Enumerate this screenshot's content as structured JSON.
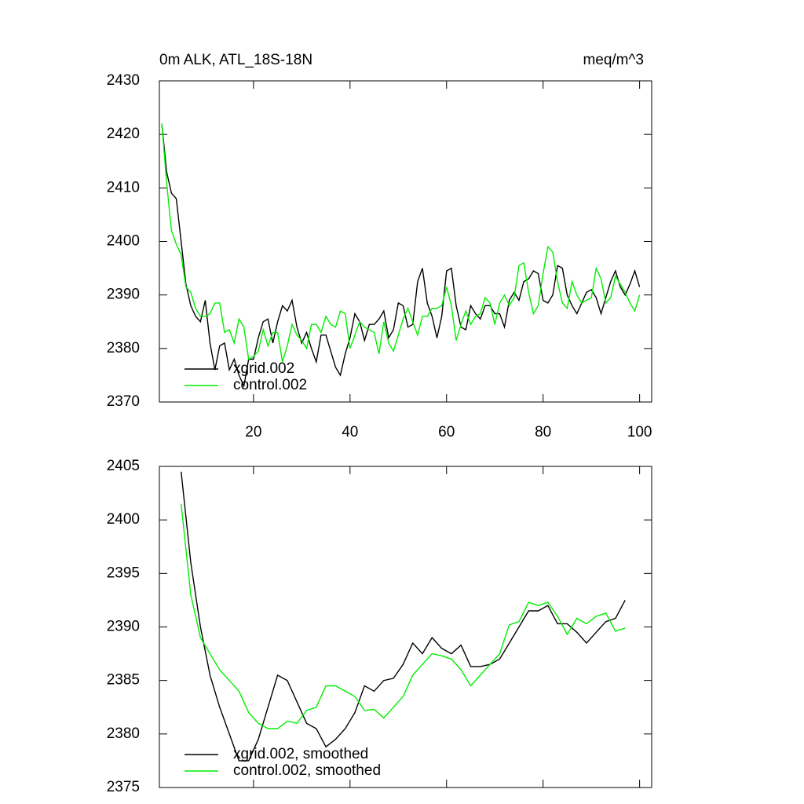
{
  "chart_data": [
    {
      "type": "line",
      "title": "0m ALK, ATL_18S-18N",
      "units": "meq/m^3",
      "x": [
        1,
        2,
        3,
        4,
        5,
        6,
        7,
        8,
        9,
        10,
        11,
        12,
        13,
        14,
        15,
        16,
        17,
        18,
        19,
        20,
        21,
        22,
        23,
        24,
        25,
        26,
        27,
        28,
        29,
        30,
        31,
        32,
        33,
        34,
        35,
        36,
        37,
        38,
        39,
        40,
        41,
        42,
        43,
        44,
        45,
        46,
        47,
        48,
        49,
        50,
        51,
        52,
        53,
        54,
        55,
        56,
        57,
        58,
        59,
        60,
        61,
        62,
        63,
        64,
        65,
        66,
        67,
        68,
        69,
        70,
        71,
        72,
        73,
        74,
        75,
        76,
        77,
        78,
        79,
        80,
        81,
        82,
        83,
        84,
        85,
        86,
        87,
        88,
        89,
        90,
        91,
        92,
        93,
        94,
        95,
        96,
        97,
        98,
        99,
        100
      ],
      "series": [
        {
          "name": "xgrid.002",
          "color": "#000000",
          "values": [
            2422,
            2413,
            2409,
            2408,
            2400,
            2392,
            2388,
            2386,
            2385,
            2389,
            2381,
            2376,
            2380.5,
            2381,
            2376,
            2378,
            2375,
            2373,
            2378,
            2378,
            2382,
            2385,
            2385.5,
            2381,
            2385,
            2388,
            2387,
            2389,
            2384,
            2381,
            2383,
            2380,
            2377.5,
            2382.5,
            2382.5,
            2379.5,
            2376.5,
            2375,
            2379,
            2382,
            2386.5,
            2385,
            2381.5,
            2384.5,
            2384.5,
            2385.5,
            2387,
            2382,
            2383.5,
            2388.5,
            2388,
            2384,
            2384.5,
            2392.5,
            2395,
            2388.5,
            2386,
            2382,
            2386,
            2394.5,
            2395,
            2388,
            2384,
            2383.5,
            2388,
            2386.5,
            2385.5,
            2388,
            2388,
            2386.5,
            2386.5,
            2384,
            2389,
            2390.5,
            2389,
            2392.5,
            2393,
            2394.5,
            2394,
            2389,
            2388.5,
            2390,
            2395.5,
            2395,
            2390,
            2388,
            2386.5,
            2388.5,
            2390.5,
            2391,
            2389.5,
            2386.5,
            2389.5,
            2392.5,
            2394.5,
            2391.5,
            2390,
            2392,
            2394.5,
            2391.5
          ]
        },
        {
          "name": "control.002",
          "color": "#00ee00",
          "values": [
            2422,
            2411,
            2402,
            2399.5,
            2397.5,
            2391.5,
            2390.5,
            2387.5,
            2386,
            2386,
            2386.5,
            2388.5,
            2388.5,
            2383,
            2383.5,
            2381,
            2385.5,
            2384,
            2378,
            2378.5,
            2379.5,
            2383.5,
            2380.5,
            2383,
            2383,
            2377.5,
            2380.5,
            2384.5,
            2382.5,
            2381.5,
            2380,
            2384.5,
            2384.5,
            2383,
            2386,
            2384.5,
            2384,
            2387,
            2386.5,
            2380,
            2382.5,
            2385,
            2384,
            2383.5,
            2383,
            2379,
            2385,
            2381,
            2379.5,
            2382.5,
            2385.5,
            2387.5,
            2385,
            2382.5,
            2386,
            2386,
            2387.5,
            2387.5,
            2388,
            2391.5,
            2388,
            2381.5,
            2384.5,
            2387,
            2384.5,
            2386,
            2386.5,
            2389.5,
            2388.5,
            2384.5,
            2388.5,
            2390,
            2388,
            2389.5,
            2395.5,
            2396,
            2390.5,
            2386.5,
            2388,
            2394,
            2399,
            2398,
            2392.5,
            2388.5,
            2387.5,
            2392.5,
            2390,
            2388.5,
            2389,
            2389.5,
            2395,
            2393,
            2388.5,
            2389.5,
            2393.5,
            2392,
            2390.5,
            2388.5,
            2387,
            2390
          ]
        }
      ],
      "xlim": [
        0.5,
        102.5
      ],
      "xticks": [
        20,
        40,
        60,
        80,
        100
      ],
      "ylim": [
        2370,
        2430
      ],
      "yticks": [
        2370,
        2380,
        2390,
        2400,
        2410,
        2420,
        2430
      ],
      "legend": "lower left"
    },
    {
      "type": "line",
      "x": [
        5,
        7,
        9,
        11,
        13,
        15,
        17,
        19,
        21,
        23,
        25,
        27,
        29,
        31,
        33,
        35,
        37,
        39,
        41,
        43,
        45,
        47,
        49,
        51,
        53,
        55,
        57,
        59,
        61,
        63,
        65,
        67,
        69,
        71,
        73,
        75,
        77,
        79,
        81,
        83,
        85,
        87,
        89,
        91,
        93,
        95,
        97
      ],
      "series": [
        {
          "name": "xgrid.002, smoothed",
          "color": "#000000",
          "values": [
            2404.5,
            2396,
            2390,
            2385.5,
            2382.5,
            2380,
            2377.5,
            2377.5,
            2379.5,
            2382.5,
            2385.5,
            2385,
            2383,
            2381,
            2380.5,
            2378.8,
            2379.5,
            2380.5,
            2382,
            2384.5,
            2384,
            2385,
            2385.2,
            2386.5,
            2388.5,
            2387.5,
            2389,
            2388,
            2387.5,
            2388.3,
            2386.3,
            2386.3,
            2386.5,
            2387,
            2388.5,
            2390,
            2391.5,
            2391.5,
            2392,
            2390.3,
            2390.3,
            2389.5,
            2388.5,
            2389.5,
            2390.5,
            2390.8,
            2392.5
          ]
        },
        {
          "name": "control.002, smoothed",
          "color": "#00ee00",
          "values": [
            2401.5,
            2393,
            2389,
            2387.5,
            2386,
            2385,
            2384,
            2382,
            2381,
            2380.5,
            2380.5,
            2381.2,
            2381,
            2382.2,
            2382.5,
            2384.5,
            2384.5,
            2384,
            2383.5,
            2382.2,
            2382.3,
            2381.5,
            2382.5,
            2383.5,
            2385.5,
            2386.5,
            2387.5,
            2387.3,
            2387,
            2386,
            2384.5,
            2385.5,
            2386.5,
            2387.5,
            2390.2,
            2390.5,
            2392.3,
            2392,
            2392.3,
            2391,
            2389.3,
            2390.8,
            2390.3,
            2391,
            2391.3,
            2389.6,
            2389.9
          ]
        }
      ],
      "xlim": [
        0.5,
        102.5
      ],
      "ylim": [
        2375,
        2405
      ],
      "yticks": [
        2375,
        2380,
        2385,
        2390,
        2395,
        2400,
        2405
      ],
      "legend": "lower left"
    }
  ]
}
